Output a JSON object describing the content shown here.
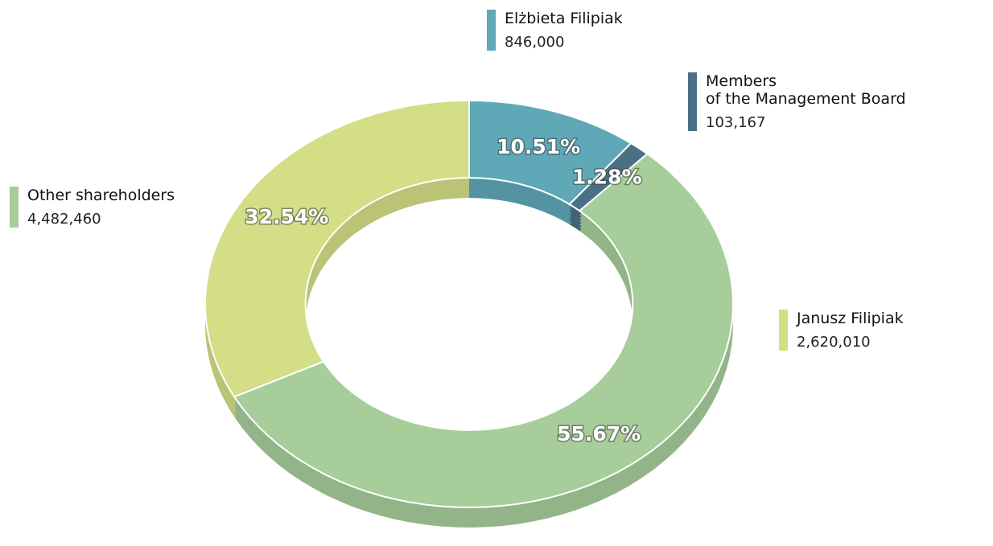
{
  "chart_data": {
    "type": "donut",
    "categories": [
      "Elżbieta Filipiak",
      "Members\nof the Management Board",
      "Other shareholders",
      "Janusz Filipiak"
    ],
    "values": [
      10.51,
      1.28,
      55.67,
      32.54
    ],
    "value_labels": [
      "10.51%",
      "1.28%",
      "55.67%",
      "32.54%"
    ],
    "counts": [
      846000,
      103167,
      4482460,
      2620010
    ],
    "count_labels": [
      "846,000",
      "103,167",
      "4,482,460",
      "2,620,010"
    ],
    "colors": [
      "#5fa8b8",
      "#4a7085",
      "#a6cd9a",
      "#d3de86"
    ]
  }
}
